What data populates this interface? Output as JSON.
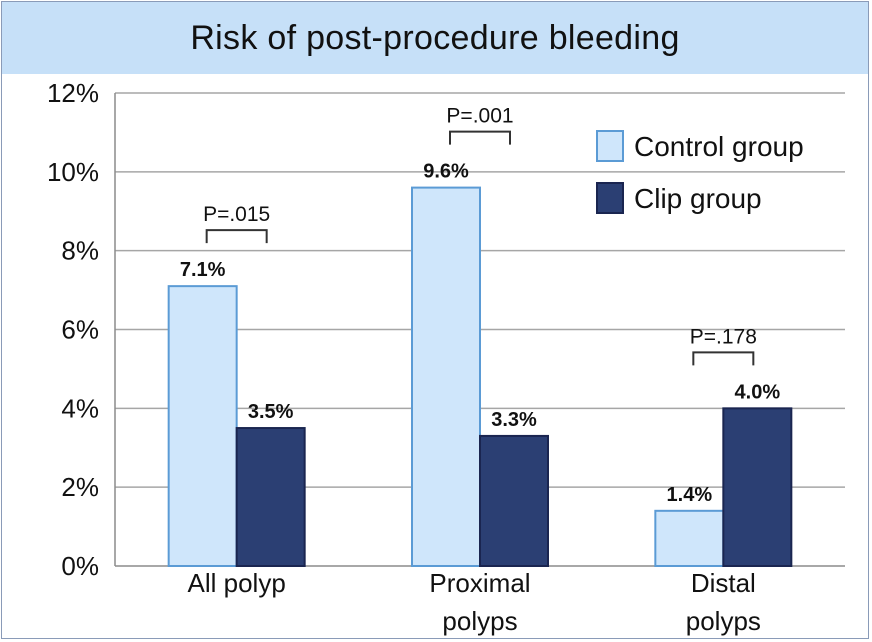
{
  "chart_data": {
    "type": "bar",
    "title": "Risk of post-procedure bleeding",
    "categories": [
      [
        "All polyp"
      ],
      [
        "Proximal",
        "polyps"
      ],
      [
        "Distal",
        "polyps"
      ]
    ],
    "series": [
      {
        "name": "Control group",
        "values": [
          7.1,
          9.6,
          1.4
        ],
        "labels": [
          "7.1%",
          "9.6%",
          "1.4%"
        ],
        "color": "#cfe6fb",
        "stroke": "#5b9bd5"
      },
      {
        "name": "Clip group",
        "values": [
          3.5,
          3.3,
          4.0
        ],
        "labels": [
          "3.5%",
          "3.3%",
          "4.0%"
        ],
        "color": "#2b3f73",
        "stroke": "#1a2550"
      }
    ],
    "p_values": [
      "P=.015",
      "P=.001",
      "P=.178"
    ],
    "ylim": [
      0,
      12
    ],
    "yticks": [
      "0%",
      "2%",
      "4%",
      "6%",
      "8%",
      "10%",
      "12%"
    ],
    "grid": true,
    "legend_position": "top-right"
  }
}
